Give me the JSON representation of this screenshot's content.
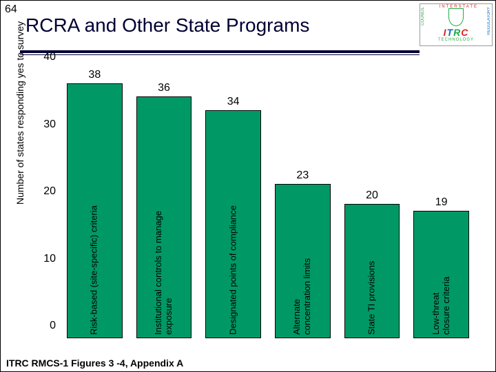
{
  "slide_number": "64",
  "title": "RCRA and Other State Programs",
  "footer": "ITRC RMCS-1 Figures 3 -4, Appendix A",
  "logo": {
    "top": "INTERSTATE",
    "left": "COUNCIL",
    "right": "REGULATORY",
    "bottom": "TECHNOLOGY"
  },
  "chart": {
    "type": "bar",
    "y_axis_label": "Number of states responding yes to survey",
    "ylim_min": 0,
    "ylim_max": 40,
    "ytick_step": 10,
    "bar_color": "#009966",
    "bar_border": "#000000",
    "background_color": "#ffffff",
    "label_fontsize": 13,
    "value_fontsize": 16,
    "tick_fontsize": 16,
    "categories": [
      "Risk-based (site-specific) criteria",
      "Institutional controls to manage\nexposure",
      "Designated points of compliance",
      "Alternate\nconcentration limits",
      "State TI provisions",
      "Low-threat\nclosure criteria"
    ],
    "values": [
      38,
      36,
      34,
      23,
      20,
      19
    ]
  }
}
